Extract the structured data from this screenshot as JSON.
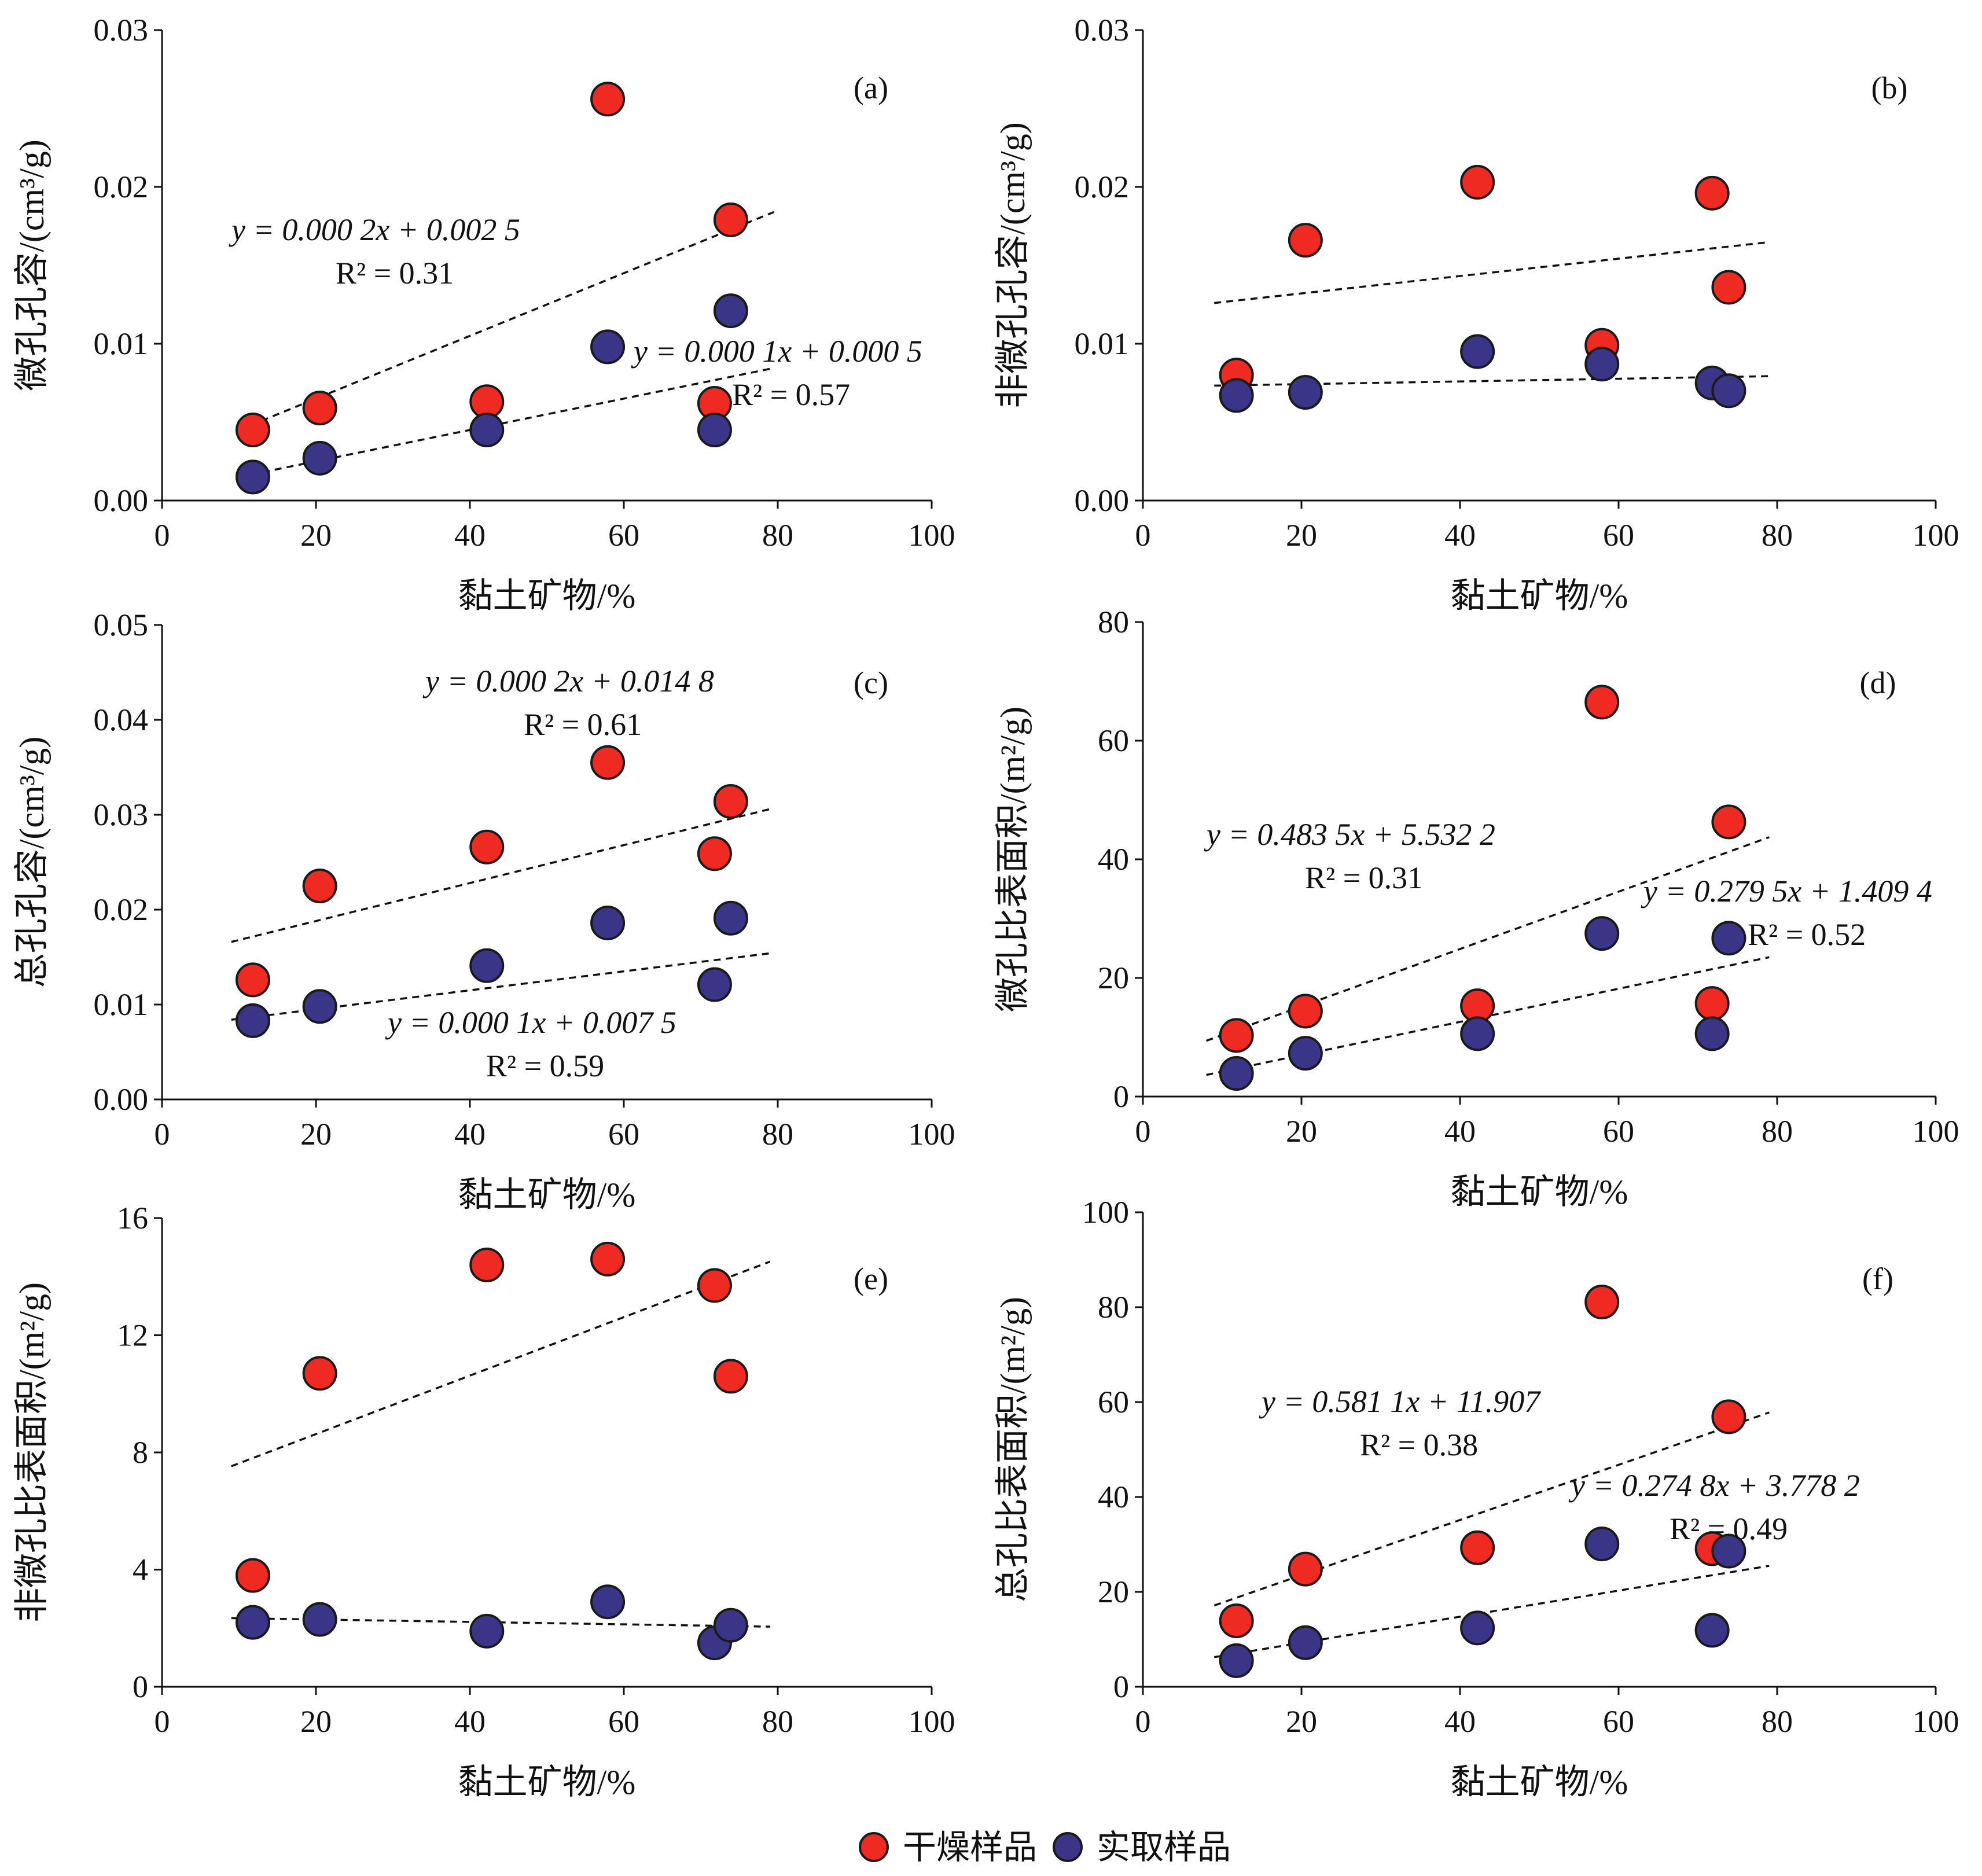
{
  "colors": {
    "dried": "#ee2a22",
    "field": "#3b3587",
    "marker_stroke": "#1a1a1a",
    "axis": "#111111",
    "trend": "#111111"
  },
  "legend": {
    "items": [
      {
        "label": "干燥样品",
        "color": "#ee2a22"
      },
      {
        "label": "实取样品",
        "color": "#3b3587"
      }
    ]
  },
  "chart_data": [
    {
      "panel": "(a)",
      "type": "scatter",
      "xlabel": "黏土矿物/%",
      "ylabel": "微孔孔容/(cm³/g)",
      "xlim": [
        0,
        100
      ],
      "ylim": [
        0,
        0.03
      ],
      "xticks": [
        "0",
        "20",
        "40",
        "60",
        "80",
        "100"
      ],
      "yticks": [
        "0.00",
        "0.01",
        "0.02",
        "0.03"
      ],
      "series": [
        {
          "name": "干燥样品",
          "color": "#ee2a22",
          "x": [
            11.8,
            20.5,
            42.2,
            57.9,
            71.8,
            73.9
          ],
          "y": [
            0.0045,
            0.0059,
            0.0063,
            0.0256,
            0.0062,
            0.0179
          ]
        },
        {
          "name": "实取样品",
          "color": "#3b3587",
          "x": [
            11.8,
            20.5,
            42.2,
            57.9,
            71.8,
            73.9
          ],
          "y": [
            0.0015,
            0.0027,
            0.0045,
            0.0098,
            0.0045,
            0.0121
          ]
        }
      ],
      "trendlines": [
        {
          "series": "干燥样品",
          "slope": 0.0002,
          "intercept": 0.0025,
          "x_range": [
            10,
            79.5
          ],
          "equation": "y = 0.000 2x + 0.002 5",
          "r2": "R² = 0.31"
        },
        {
          "series": "实取样品",
          "slope": 0.0001,
          "intercept": 0.0005,
          "x_range": [
            10,
            79.5
          ],
          "equation": "y = 0.000 1x + 0.000 5",
          "r2": "R² = 0.57"
        }
      ]
    },
    {
      "panel": "(b)",
      "type": "scatter",
      "xlabel": "黏土矿物/%",
      "ylabel": "非微孔孔容/(cm³/g)",
      "xlim": [
        0,
        100
      ],
      "ylim": [
        0,
        0.03
      ],
      "xticks": [
        "0",
        "20",
        "40",
        "60",
        "80",
        "100"
      ],
      "yticks": [
        "0.00",
        "0.01",
        "0.02",
        "0.03"
      ],
      "series": [
        {
          "name": "干燥样品",
          "color": "#ee2a22",
          "x": [
            11.8,
            20.5,
            42.2,
            57.9,
            71.8,
            73.9
          ],
          "y": [
            0.008,
            0.0166,
            0.0203,
            0.0099,
            0.0196,
            0.0136
          ]
        },
        {
          "name": "实取样品",
          "color": "#3b3587",
          "x": [
            11.8,
            20.5,
            42.2,
            57.9,
            71.8,
            73.9
          ],
          "y": [
            0.0067,
            0.0069,
            0.0095,
            0.0087,
            0.0075,
            0.007
          ]
        }
      ],
      "trendlines": [
        {
          "series": "干燥样品",
          "slope": 5.54e-05,
          "intercept": 0.0121,
          "x_range": [
            9,
            79
          ]
        },
        {
          "series": "实取样品",
          "slope": 8.6e-06,
          "intercept": 0.00725,
          "x_range": [
            9,
            79
          ]
        }
      ]
    },
    {
      "panel": "(c)",
      "type": "scatter",
      "xlabel": "黏土矿物/%",
      "ylabel": "总孔孔容/(cm³/g)",
      "xlim": [
        0,
        100
      ],
      "ylim": [
        0,
        0.05
      ],
      "xticks": [
        "0",
        "20",
        "40",
        "60",
        "80",
        "100"
      ],
      "yticks": [
        "0.00",
        "0.01",
        "0.02",
        "0.03",
        "0.04",
        "0.05"
      ],
      "series": [
        {
          "name": "干燥样品",
          "color": "#ee2a22",
          "x": [
            11.8,
            20.5,
            42.2,
            57.9,
            71.8,
            73.9
          ],
          "y": [
            0.0126,
            0.0225,
            0.0266,
            0.0355,
            0.0259,
            0.0314
          ]
        },
        {
          "name": "实取样品",
          "color": "#3b3587",
          "x": [
            11.8,
            20.5,
            42.2,
            57.9,
            71.8,
            73.9
          ],
          "y": [
            0.0083,
            0.0098,
            0.0141,
            0.0186,
            0.0121,
            0.0191
          ]
        }
      ],
      "trendlines": [
        {
          "series": "干燥样品",
          "slope": 0.0002,
          "intercept": 0.0148,
          "x_range": [
            9,
            79.5
          ],
          "equation": "y = 0.000 2x + 0.014 8",
          "r2": "R² = 0.61"
        },
        {
          "series": "实取样品",
          "slope": 0.0001,
          "intercept": 0.0075,
          "x_range": [
            9,
            79.5
          ],
          "equation": "y = 0.000 1x + 0.007 5",
          "r2": "R² = 0.59"
        }
      ]
    },
    {
      "panel": "(d)",
      "type": "scatter",
      "xlabel": "黏土矿物/%",
      "ylabel": "微孔比表面积/(m²/g)",
      "xlim": [
        0,
        100
      ],
      "ylim": [
        0,
        80
      ],
      "xticks": [
        "0",
        "20",
        "40",
        "60",
        "80",
        "100"
      ],
      "yticks": [
        "0",
        "20",
        "40",
        "60",
        "80"
      ],
      "series": [
        {
          "name": "干燥样品",
          "color": "#ee2a22",
          "x": [
            11.8,
            20.5,
            42.2,
            57.9,
            71.8,
            73.9
          ],
          "y": [
            10.3,
            14.4,
            15.3,
            66.5,
            15.7,
            46.3
          ]
        },
        {
          "name": "实取样品",
          "color": "#3b3587",
          "x": [
            11.8,
            20.5,
            42.2,
            57.9,
            71.8,
            73.9
          ],
          "y": [
            3.9,
            7.3,
            10.6,
            27.5,
            10.6,
            26.7
          ]
        }
      ],
      "trendlines": [
        {
          "series": "干燥样品",
          "slope": 0.4835,
          "intercept": 5.5322,
          "x_range": [
            8,
            79
          ],
          "equation": "y = 0.483 5x + 5.532 2",
          "r2": "R² = 0.31"
        },
        {
          "series": "实取样品",
          "slope": 0.2795,
          "intercept": 1.4094,
          "x_range": [
            8,
            79
          ],
          "equation": "y = 0.279 5x + 1.409 4",
          "r2": "R² = 0.52"
        }
      ]
    },
    {
      "panel": "(e)",
      "type": "scatter",
      "xlabel": "黏土矿物/%",
      "ylabel": "非微孔比表面积/(m²/g)",
      "xlim": [
        0,
        100
      ],
      "ylim": [
        0,
        16
      ],
      "xticks": [
        "0",
        "20",
        "40",
        "60",
        "80",
        "100"
      ],
      "yticks": [
        "0",
        "4",
        "8",
        "12",
        "16"
      ],
      "series": [
        {
          "name": "干燥样品",
          "color": "#ee2a22",
          "x": [
            11.8,
            20.5,
            42.2,
            57.9,
            71.8,
            73.9
          ],
          "y": [
            3.8,
            10.7,
            14.4,
            14.6,
            13.7,
            10.6
          ]
        },
        {
          "name": "实取样品",
          "color": "#3b3587",
          "x": [
            11.8,
            20.5,
            42.2,
            57.9,
            71.8,
            73.9
          ],
          "y": [
            2.2,
            2.3,
            1.9,
            2.9,
            1.5,
            2.1
          ]
        }
      ],
      "trendlines": [
        {
          "series": "干燥样品",
          "slope": 0.0998,
          "intercept": 6.63,
          "x_range": [
            9,
            79
          ]
        },
        {
          "series": "实取样品",
          "slope": -0.00414,
          "intercept": 2.38,
          "x_range": [
            9,
            79
          ]
        }
      ]
    },
    {
      "panel": "(f)",
      "type": "scatter",
      "xlabel": "黏土矿物/%",
      "ylabel": "总孔比表面积/(m²/g)",
      "xlim": [
        0,
        100
      ],
      "ylim": [
        0,
        100
      ],
      "xticks": [
        "0",
        "20",
        "40",
        "60",
        "80",
        "100"
      ],
      "yticks": [
        "0",
        "20",
        "40",
        "60",
        "80",
        "100"
      ],
      "series": [
        {
          "name": "干燥样品",
          "color": "#ee2a22",
          "x": [
            11.8,
            20.5,
            42.2,
            57.9,
            71.8,
            73.9
          ],
          "y": [
            13.9,
            24.8,
            29.3,
            81.1,
            29.1,
            56.9
          ]
        },
        {
          "name": "实取样品",
          "color": "#3b3587",
          "x": [
            11.8,
            20.5,
            42.2,
            57.9,
            71.8,
            73.9
          ],
          "y": [
            5.5,
            9.3,
            12.4,
            30.1,
            11.9,
            28.6
          ]
        }
      ],
      "trendlines": [
        {
          "series": "干燥样品",
          "slope": 0.5811,
          "intercept": 11.907,
          "x_range": [
            9,
            79
          ],
          "equation": "y = 0.581 1x + 11.907",
          "r2": "R² = 0.38"
        },
        {
          "series": "实取样品",
          "slope": 0.2748,
          "intercept": 3.7782,
          "x_range": [
            9,
            79
          ],
          "equation": "y = 0.274 8x + 3.778 2",
          "r2": "R² = 0.49"
        }
      ]
    }
  ]
}
